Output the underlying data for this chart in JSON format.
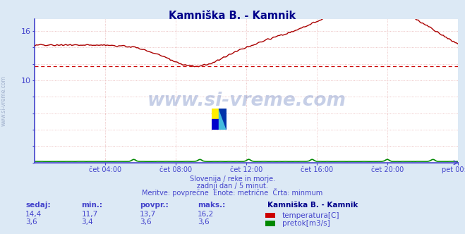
{
  "title": "Kamniška B. - Kamnik",
  "title_color": "#00008b",
  "bg_color": "#dce9f5",
  "plot_bg_color": "#ffffff",
  "grid_color": "#e8b4b4",
  "grid_color_v": "#c8c8e8",
  "x_ticks_labels": [
    "čet 04:00",
    "čet 08:00",
    "čet 12:00",
    "čet 16:00",
    "čet 20:00",
    "pet 00:00"
  ],
  "x_ticks_pos": [
    0.1667,
    0.3333,
    0.5,
    0.6667,
    0.8333,
    1.0
  ],
  "y_ticks_show": [
    10,
    16
  ],
  "y_ticks_all": [
    0,
    2,
    4,
    6,
    8,
    10,
    12,
    14,
    16
  ],
  "ylim_min": 0,
  "ylim_max": 17.5,
  "xlim_min": 0,
  "xlim_max": 1,
  "dashed_line_y": 11.7,
  "temp_color": "#aa0000",
  "flow_color": "#008800",
  "dashed_color": "#cc0000",
  "spine_color": "#4444cc",
  "axis_text_color": "#4444cc",
  "text_color": "#4444cc",
  "watermark": "www.si-vreme.com",
  "watermark_color": "#3355aa",
  "subtitle1": "Slovenija / reke in morje.",
  "subtitle2": "zadnji dan / 5 minut.",
  "subtitle3": "Meritve: povprečne  Enote: metrične  Črta: minmum",
  "legend_title": "Kamniška B. - Kamnik",
  "legend_items": [
    "temperatura[C]",
    "pretok[m3/s]"
  ],
  "legend_colors": [
    "#cc0000",
    "#008800"
  ],
  "table_headers": [
    "sedaj:",
    "min.:",
    "povpr.:",
    "maks.:"
  ],
  "table_row1": [
    "14,4",
    "11,7",
    "13,7",
    "16,2"
  ],
  "table_row2": [
    "3,6",
    "3,4",
    "3,6",
    "3,6"
  ],
  "ylabel_text": "www.si-vreme.com",
  "ylabel_color": "#8899bb"
}
